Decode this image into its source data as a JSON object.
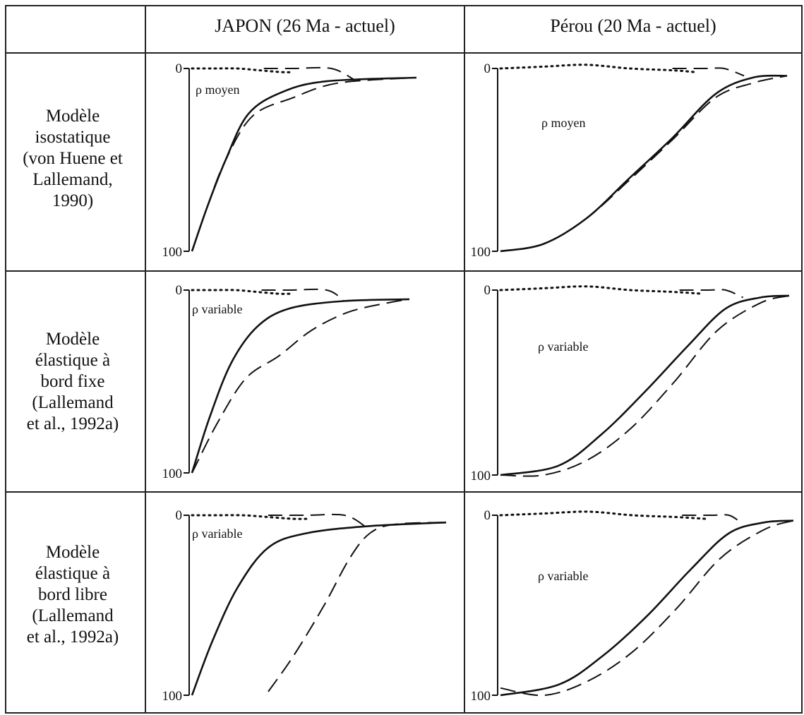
{
  "table": {
    "header_left": "",
    "columns": [
      "JAPON (26 Ma - actuel)",
      "Pérou (20 Ma - actuel)"
    ],
    "rows": [
      {
        "label_lines": [
          "Modèle",
          "isostatique",
          "(von Huene et",
          "Lallemand,",
          "1990)"
        ]
      },
      {
        "label_lines": [
          "Modèle",
          "élastique à",
          "bord fixe",
          "(Lallemand",
          "et al., 1992a)"
        ]
      },
      {
        "label_lines": [
          "Modèle",
          "élastique à",
          "bord libre",
          "(Lallemand",
          "et al., 1992a)"
        ]
      }
    ]
  },
  "chart_data": [
    {
      "type": "line",
      "row": 0,
      "col": 0,
      "annotation": "ρ moyen",
      "y_ticks": [
        "0",
        "100"
      ],
      "ylim": [
        0,
        100
      ],
      "series": [
        {
          "style": "dotted",
          "x": [
            0,
            0.1,
            0.2,
            0.3,
            0.4,
            0.45
          ],
          "y": [
            0,
            0,
            0,
            1,
            2,
            2
          ]
        },
        {
          "style": "dashed-top",
          "x": [
            0.32,
            0.45,
            0.62,
            0.72
          ],
          "y": [
            0,
            0,
            0,
            6
          ]
        },
        {
          "style": "solid",
          "x": [
            0,
            0.07,
            0.15,
            0.25,
            0.4,
            0.6,
            1.0
          ],
          "y": [
            100,
            75,
            50,
            25,
            13,
            7,
            5
          ]
        },
        {
          "style": "dashed",
          "x": [
            0,
            0.07,
            0.15,
            0.27,
            0.45,
            0.65,
            1.0
          ],
          "y": [
            100,
            75,
            50,
            26,
            16,
            8,
            5
          ]
        }
      ]
    },
    {
      "type": "line",
      "row": 0,
      "col": 1,
      "annotation": "ρ moyen",
      "y_ticks": [
        "0",
        "100"
      ],
      "ylim": [
        0,
        100
      ],
      "series": [
        {
          "style": "dotted",
          "x": [
            0,
            0.15,
            0.3,
            0.45,
            0.6,
            0.68
          ],
          "y": [
            0,
            -1,
            -2,
            0,
            1,
            2
          ]
        },
        {
          "style": "dashed-top",
          "x": [
            0.6,
            0.72,
            0.78,
            0.85
          ],
          "y": [
            0,
            0,
            0,
            4
          ]
        },
        {
          "style": "solid",
          "x": [
            0,
            0.15,
            0.3,
            0.45,
            0.6,
            0.75,
            0.88,
            1.0
          ],
          "y": [
            100,
            96,
            82,
            60,
            38,
            14,
            5,
            4
          ]
        },
        {
          "style": "dashed",
          "x": [
            0,
            0.15,
            0.3,
            0.45,
            0.6,
            0.75,
            0.88,
            1.0
          ],
          "y": [
            100,
            96,
            82,
            61,
            39,
            16,
            8,
            4
          ]
        }
      ]
    },
    {
      "type": "line",
      "row": 1,
      "col": 0,
      "annotation": "ρ variable",
      "y_ticks": [
        "0",
        "100"
      ],
      "ylim": [
        0,
        100
      ],
      "series": [
        {
          "style": "dotted",
          "x": [
            0,
            0.1,
            0.2,
            0.3,
            0.4,
            0.45
          ],
          "y": [
            0,
            0,
            0,
            1,
            2,
            2
          ]
        },
        {
          "style": "dashed-top",
          "x": [
            0.32,
            0.45,
            0.62,
            0.7
          ],
          "y": [
            0,
            0,
            0,
            6
          ]
        },
        {
          "style": "solid",
          "x": [
            0,
            0.08,
            0.18,
            0.3,
            0.45,
            0.7,
            1.0
          ],
          "y": [
            100,
            70,
            40,
            20,
            10,
            6,
            5
          ]
        },
        {
          "style": "dashed",
          "x": [
            0,
            0.12,
            0.25,
            0.4,
            0.55,
            0.72,
            0.9,
            1.0
          ],
          "y": [
            100,
            72,
            48,
            36,
            22,
            12,
            7,
            5
          ]
        }
      ]
    },
    {
      "type": "line",
      "row": 1,
      "col": 1,
      "annotation": "ρ variable",
      "y_ticks": [
        "0",
        "100"
      ],
      "ylim": [
        0,
        100
      ],
      "series": [
        {
          "style": "dotted",
          "x": [
            0,
            0.15,
            0.3,
            0.45,
            0.6,
            0.7
          ],
          "y": [
            0,
            -1,
            -2,
            0,
            1,
            2
          ]
        },
        {
          "style": "dashed-top",
          "x": [
            0.62,
            0.72,
            0.78,
            0.84
          ],
          "y": [
            0,
            0,
            0,
            4
          ]
        },
        {
          "style": "solid",
          "x": [
            0,
            0.2,
            0.35,
            0.5,
            0.65,
            0.78,
            0.9,
            1.0
          ],
          "y": [
            100,
            95,
            78,
            55,
            30,
            10,
            4,
            3
          ]
        },
        {
          "style": "dashed",
          "x": [
            0,
            0.15,
            0.3,
            0.45,
            0.6,
            0.75,
            0.9,
            1.0
          ],
          "y": [
            100,
            100,
            92,
            75,
            50,
            22,
            7,
            3
          ]
        }
      ]
    },
    {
      "type": "line",
      "row": 2,
      "col": 0,
      "annotation": "ρ variable",
      "y_ticks": [
        "0",
        "100"
      ],
      "ylim": [
        0,
        100
      ],
      "series": [
        {
          "style": "dotted",
          "x": [
            0,
            0.1,
            0.2,
            0.3,
            0.4,
            0.45
          ],
          "y": [
            0,
            0,
            0,
            1,
            2,
            2
          ]
        },
        {
          "style": "dashed-top",
          "x": [
            0.3,
            0.45,
            0.6,
            0.68
          ],
          "y": [
            0,
            0,
            0,
            6
          ]
        },
        {
          "style": "solid",
          "x": [
            0,
            0.08,
            0.18,
            0.3,
            0.45,
            0.7,
            1.0
          ],
          "y": [
            100,
            70,
            40,
            18,
            10,
            6,
            4
          ]
        },
        {
          "style": "dashed",
          "x": [
            0.3,
            0.4,
            0.52,
            0.62,
            0.7,
            0.8,
            1.0
          ],
          "y": [
            98,
            78,
            50,
            24,
            10,
            5,
            4
          ]
        }
      ]
    },
    {
      "type": "line",
      "row": 2,
      "col": 1,
      "annotation": "ρ variable",
      "y_ticks": [
        "0",
        "100"
      ],
      "ylim": [
        0,
        100
      ],
      "series": [
        {
          "style": "dotted",
          "x": [
            0,
            0.15,
            0.3,
            0.45,
            0.6,
            0.7
          ],
          "y": [
            0,
            -1,
            -2,
            0,
            1,
            2
          ]
        },
        {
          "style": "dashed-top",
          "x": [
            0.62,
            0.72,
            0.78,
            0.82
          ],
          "y": [
            0,
            0,
            0,
            4
          ]
        },
        {
          "style": "solid",
          "x": [
            0,
            0.2,
            0.35,
            0.5,
            0.65,
            0.78,
            0.9,
            1.0
          ],
          "y": [
            100,
            94,
            78,
            56,
            30,
            10,
            4,
            3
          ]
        },
        {
          "style": "dashed",
          "x": [
            0,
            0.15,
            0.3,
            0.45,
            0.6,
            0.75,
            0.9,
            1.0
          ],
          "y": [
            96,
            100,
            92,
            76,
            52,
            24,
            8,
            3
          ]
        }
      ]
    }
  ]
}
